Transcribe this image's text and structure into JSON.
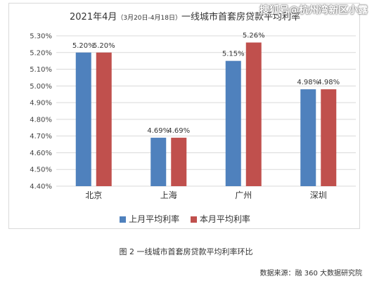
{
  "title_main": "2021年4月",
  "title_range": "（3月20日-4月18日）",
  "title_rest": "一线城市首套房贷款平均利率",
  "watermark": "搜狐号@杭州湾新区小露",
  "caption": "图 2  一线城市首套房贷款平均利率环比",
  "source": "数据来源：融 360 大数据研究院",
  "colors": {
    "last_month": "#4F81BD",
    "this_month": "#C0504D",
    "grid": "#d9d9d9",
    "axis_text": "#444444"
  },
  "chart_data": {
    "type": "bar",
    "categories": [
      "北京",
      "上海",
      "广州",
      "深圳"
    ],
    "series": [
      {
        "name": "上月平均利率",
        "values": [
          5.2,
          4.69,
          5.15,
          4.98
        ],
        "labels": [
          "5.20%",
          "4.69%",
          "5.15%",
          "4.98%"
        ]
      },
      {
        "name": "本月平均利率",
        "values": [
          5.2,
          4.69,
          5.26,
          4.98
        ],
        "labels": [
          "5.20%",
          "4.69%",
          "5.26%",
          "4.98%"
        ]
      }
    ],
    "ylim": [
      4.4,
      5.3
    ],
    "yticks": [
      4.4,
      4.5,
      4.6,
      4.7,
      4.8,
      4.9,
      5.0,
      5.1,
      5.2,
      5.3
    ],
    "ytick_labels": [
      "4.40%",
      "4.50%",
      "4.60%",
      "4.70%",
      "4.80%",
      "4.90%",
      "5.00%",
      "5.10%",
      "5.20%",
      "5.30%"
    ],
    "grid": true,
    "legend_position": "bottom"
  }
}
